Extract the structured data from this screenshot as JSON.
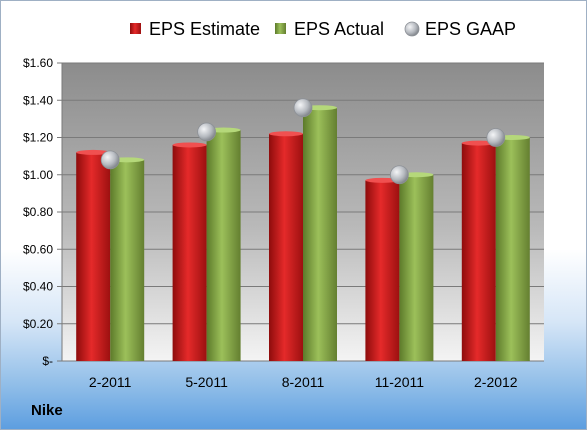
{
  "company": "Nike",
  "colors": {
    "estimate": "#d21f1f",
    "actual": "#8cb049",
    "gaap": "#b8bcc2"
  },
  "chart_data": {
    "type": "bar",
    "categories": [
      "2-2011",
      "5-2011",
      "8-2011",
      "11-2011",
      "2-2012"
    ],
    "series": [
      {
        "name": "EPS Estimate",
        "kind": "bar",
        "values": [
          1.12,
          1.16,
          1.22,
          0.97,
          1.17
        ]
      },
      {
        "name": "EPS Actual",
        "kind": "bar",
        "values": [
          1.08,
          1.24,
          1.36,
          1.0,
          1.2
        ]
      },
      {
        "name": "EPS GAAP",
        "kind": "marker",
        "values": [
          1.08,
          1.23,
          1.36,
          1.0,
          1.2
        ]
      }
    ],
    "yticks": [
      0,
      0.2,
      0.4,
      0.6,
      0.8,
      1.0,
      1.2,
      1.4,
      1.6
    ],
    "ytick_labels": [
      "$-",
      "$0.20",
      "$0.40",
      "$0.60",
      "$0.80",
      "$1.00",
      "$1.20",
      "$1.40",
      "$1.60"
    ],
    "ylim": [
      0,
      1.6
    ],
    "grid": true,
    "legend_position": "top"
  }
}
